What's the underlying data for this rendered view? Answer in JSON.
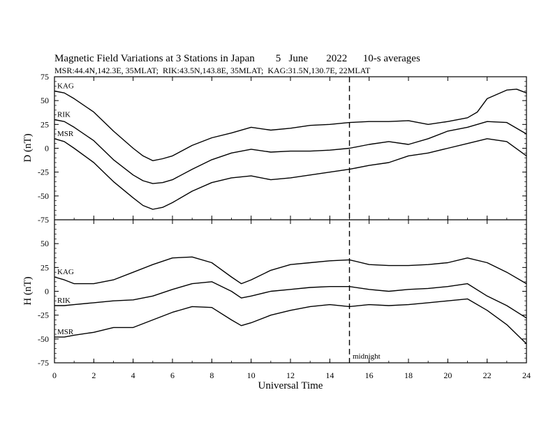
{
  "chart_data": {
    "type": "line",
    "title": "Magnetic Field Variations at 3 Stations in Japan        5   June       2022      10-s averages",
    "subtitle": "MSR:44.4N,142.3E, 35MLAT;  RIK:43.5N,143.8E, 35MLAT;  KAG:31.5N,130.7E, 22MLAT",
    "xlabel": "Universal Time",
    "xlim": [
      0,
      24
    ],
    "xticks": [
      0,
      2,
      4,
      6,
      8,
      10,
      12,
      14,
      16,
      18,
      20,
      22,
      24
    ],
    "marker": {
      "x": 15,
      "label": "midnight"
    },
    "panels": [
      {
        "ylabel": "D (nT)",
        "ylim": [
          -75,
          75
        ],
        "yticks": [
          75,
          50,
          25,
          0,
          -25,
          -50,
          -75
        ],
        "series": [
          {
            "name": "KAG",
            "x": [
              0,
              0.5,
              1,
              2,
              3,
              4,
              4.5,
              5,
              5.5,
              6,
              7,
              8,
              9,
              10,
              11,
              12,
              13,
              14,
              15,
              16,
              17,
              18,
              19,
              20,
              21,
              21.5,
              22,
              23,
              23.5,
              24
            ],
            "y": [
              60,
              58,
              52,
              38,
              18,
              0,
              -8,
              -13,
              -11,
              -8,
              3,
              11,
              16,
              22,
              19,
              21,
              24,
              25,
              27,
              28,
              28,
              29,
              25,
              28,
              32,
              38,
              52,
              61,
              62,
              58
            ]
          },
          {
            "name": "RIK",
            "x": [
              0,
              0.5,
              1,
              2,
              3,
              4,
              4.5,
              5,
              5.5,
              6,
              7,
              8,
              9,
              10,
              11,
              12,
              13,
              14,
              15,
              16,
              17,
              18,
              19,
              20,
              21,
              22,
              23,
              24
            ],
            "y": [
              30,
              28,
              22,
              8,
              -12,
              -28,
              -34,
              -37,
              -36,
              -33,
              -22,
              -12,
              -5,
              -1,
              -4,
              -3,
              -3,
              -2,
              0,
              4,
              7,
              4,
              10,
              18,
              22,
              28,
              27,
              15
            ]
          },
          {
            "name": "MSR",
            "x": [
              0,
              0.5,
              1,
              2,
              3,
              4,
              4.5,
              5,
              5.5,
              6,
              7,
              8,
              9,
              10,
              11,
              12,
              13,
              14,
              15,
              16,
              17,
              18,
              19,
              20,
              21,
              22,
              23,
              24
            ],
            "y": [
              10,
              7,
              0,
              -15,
              -35,
              -52,
              -60,
              -64,
              -62,
              -57,
              -45,
              -36,
              -31,
              -29,
              -33,
              -31,
              -28,
              -25,
              -22,
              -18,
              -15,
              -8,
              -5,
              0,
              5,
              10,
              7,
              -8
            ]
          }
        ]
      },
      {
        "ylabel": "H (nT)",
        "ylim": [
          -75,
          75
        ],
        "yticks": [
          50,
          25,
          0,
          -25,
          -50,
          -75
        ],
        "series": [
          {
            "name": "KAG",
            "x": [
              0,
              0.5,
              1,
              2,
              3,
              4,
              5,
              6,
              7,
              8,
              9,
              9.5,
              10,
              11,
              12,
              13,
              14,
              15,
              16,
              17,
              18,
              19,
              20,
              21,
              22,
              23,
              24
            ],
            "y": [
              15,
              12,
              8,
              8,
              12,
              20,
              28,
              35,
              36,
              30,
              15,
              8,
              12,
              22,
              28,
              30,
              32,
              33,
              28,
              27,
              27,
              28,
              30,
              35,
              30,
              20,
              8
            ]
          },
          {
            "name": "RIK",
            "x": [
              0,
              0.5,
              1,
              2,
              3,
              4,
              5,
              6,
              7,
              8,
              9,
              9.5,
              10,
              11,
              12,
              13,
              14,
              15,
              16,
              17,
              18,
              19,
              20,
              21,
              22,
              23,
              24
            ],
            "y": [
              -15,
              -15,
              -14,
              -12,
              -10,
              -9,
              -5,
              2,
              8,
              10,
              0,
              -7,
              -5,
              0,
              2,
              4,
              5,
              5,
              2,
              0,
              2,
              3,
              5,
              8,
              -5,
              -15,
              -28
            ]
          },
          {
            "name": "MSR",
            "x": [
              0,
              0.5,
              1,
              2,
              3,
              4,
              5,
              6,
              7,
              8,
              9,
              9.5,
              10,
              11,
              12,
              13,
              14,
              15,
              16,
              17,
              18,
              19,
              20,
              21,
              22,
              23,
              24
            ],
            "y": [
              -48,
              -48,
              -46,
              -43,
              -38,
              -38,
              -30,
              -22,
              -16,
              -17,
              -30,
              -36,
              -33,
              -25,
              -20,
              -16,
              -14,
              -16,
              -14,
              -15,
              -14,
              -12,
              -10,
              -8,
              -20,
              -35,
              -55
            ]
          }
        ]
      }
    ]
  }
}
